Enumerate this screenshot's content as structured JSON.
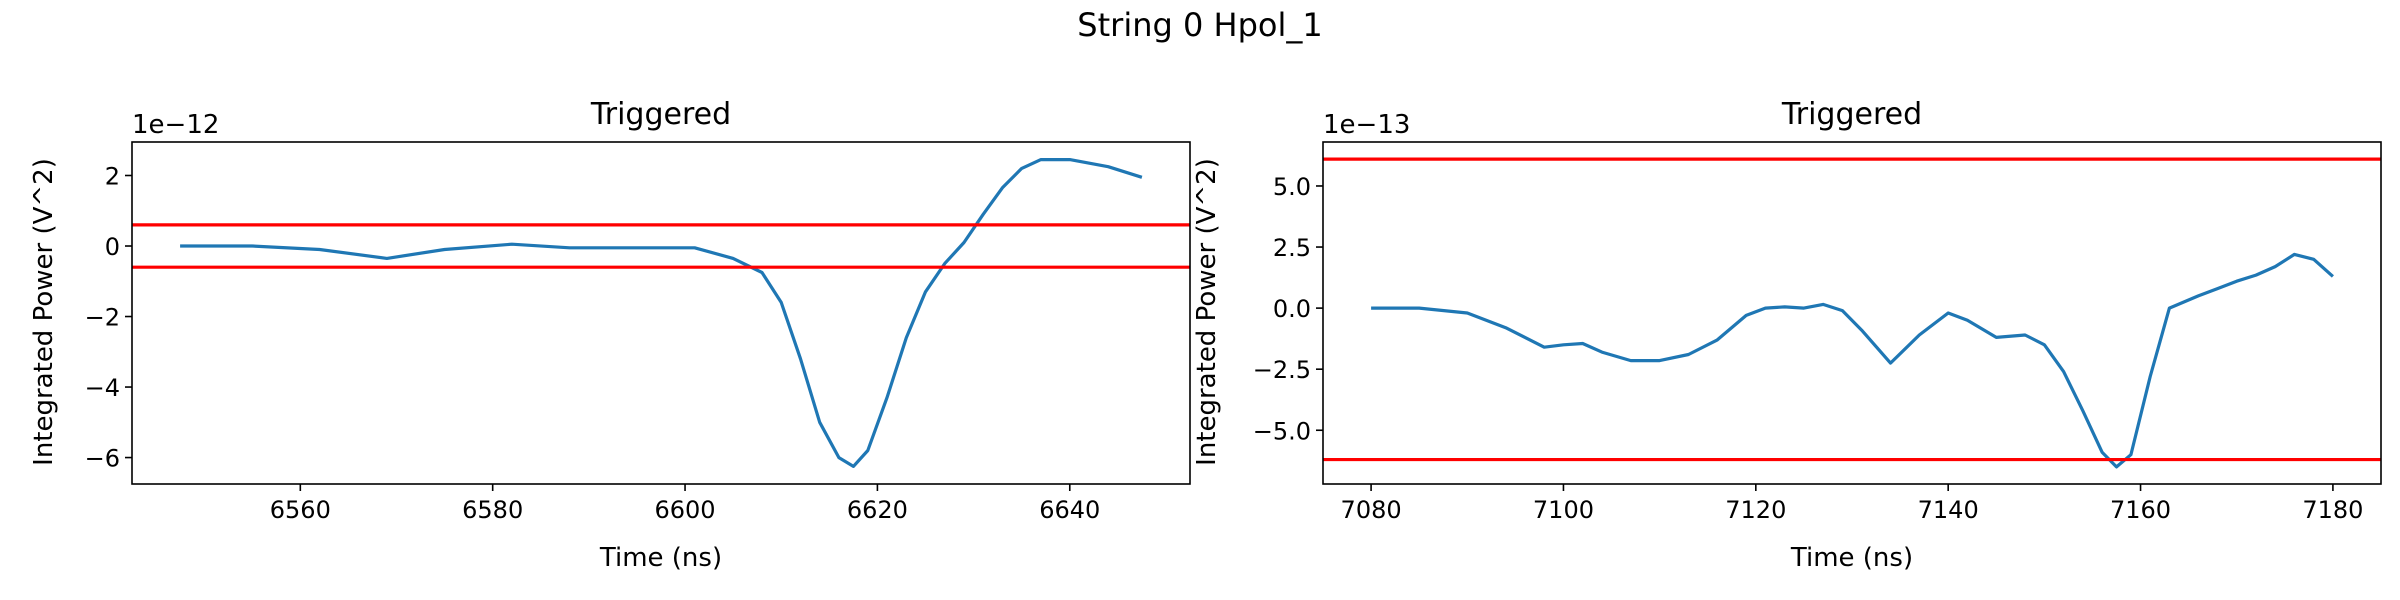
{
  "suptitle": "String 0 Hpol_1",
  "chart_data": [
    {
      "type": "line",
      "title": "Triggered",
      "xlabel": "Time (ns)",
      "ylabel": "Integrated Power (V^2)",
      "y_offset_label": "1e−12",
      "y_scale": 1e-12,
      "xlim": [
        6542.5,
        6652.5
      ],
      "ylim": [
        -6.75,
        2.95
      ],
      "xticks": [
        6560,
        6580,
        6600,
        6620,
        6640
      ],
      "xtick_labels": [
        "6560",
        "6580",
        "6600",
        "6620",
        "6640"
      ],
      "yticks": [
        2,
        0,
        -2,
        -4,
        -6
      ],
      "ytick_labels": [
        "2",
        "0",
        "−2",
        "−4",
        "−6"
      ],
      "grid": false,
      "series": [
        {
          "color": "#1f77b4",
          "x": [
            6547.5,
            6555,
            6562,
            6569,
            6575,
            6582,
            6588,
            6595,
            6601,
            6605,
            6608,
            6610,
            6612,
            6614,
            6616,
            6617.5,
            6619,
            6621,
            6623,
            6625,
            6627,
            6629,
            6631,
            6633,
            6635,
            6637,
            6640,
            6644,
            6647.5
          ],
          "y": [
            0.0,
            0.0,
            -0.1,
            -0.35,
            -0.1,
            0.05,
            -0.05,
            -0.05,
            -0.05,
            -0.35,
            -0.75,
            -1.6,
            -3.2,
            -5.0,
            -6.0,
            -6.25,
            -5.8,
            -4.3,
            -2.6,
            -1.3,
            -0.5,
            0.1,
            0.9,
            1.65,
            2.2,
            2.45,
            2.45,
            2.25,
            1.95
          ]
        }
      ],
      "hlines": [
        {
          "y": 0.6,
          "color": "#ff0000"
        },
        {
          "y": -0.6,
          "color": "#ff0000"
        }
      ]
    },
    {
      "type": "line",
      "title": "Triggered",
      "xlabel": "Time (ns)",
      "ylabel": "Integrated Power (V^2)",
      "y_offset_label": "1e−13",
      "y_scale": 1e-13,
      "xlim": [
        7075,
        7185
      ],
      "ylim": [
        -7.2,
        6.8
      ],
      "xticks": [
        7080,
        7100,
        7120,
        7140,
        7160,
        7180
      ],
      "xtick_labels": [
        "7080",
        "7100",
        "7120",
        "7140",
        "7160",
        "7180"
      ],
      "yticks": [
        5.0,
        2.5,
        0.0,
        -2.5,
        -5.0
      ],
      "ytick_labels": [
        "5.0",
        "2.5",
        "0.0",
        "−2.5",
        "−5.0"
      ],
      "grid": false,
      "series": [
        {
          "color": "#1f77b4",
          "x": [
            7080,
            7085,
            7090,
            7094,
            7098,
            7100,
            7102,
            7104,
            7107,
            7110,
            7113,
            7116,
            7119,
            7121,
            7123,
            7125,
            7127,
            7129,
            7131,
            7134,
            7137,
            7140,
            7142,
            7145,
            7148,
            7150,
            7152,
            7154,
            7156,
            7157.5,
            7159,
            7161,
            7163,
            7166,
            7168,
            7170,
            7172,
            7174,
            7176,
            7178,
            7180
          ],
          "y": [
            0.0,
            0.0,
            -0.2,
            -0.8,
            -1.6,
            -1.5,
            -1.45,
            -1.8,
            -2.15,
            -2.15,
            -1.9,
            -1.3,
            -0.3,
            0.0,
            0.05,
            0.0,
            0.15,
            -0.1,
            -0.9,
            -2.25,
            -1.1,
            -0.2,
            -0.5,
            -1.2,
            -1.1,
            -1.5,
            -2.6,
            -4.2,
            -5.9,
            -6.5,
            -6.0,
            -2.8,
            0.0,
            0.5,
            0.8,
            1.1,
            1.35,
            1.7,
            2.2,
            2.0,
            1.3
          ]
        }
      ],
      "hlines": [
        {
          "y": 6.1,
          "color": "#ff0000"
        },
        {
          "y": -6.2,
          "color": "#ff0000"
        }
      ]
    }
  ]
}
